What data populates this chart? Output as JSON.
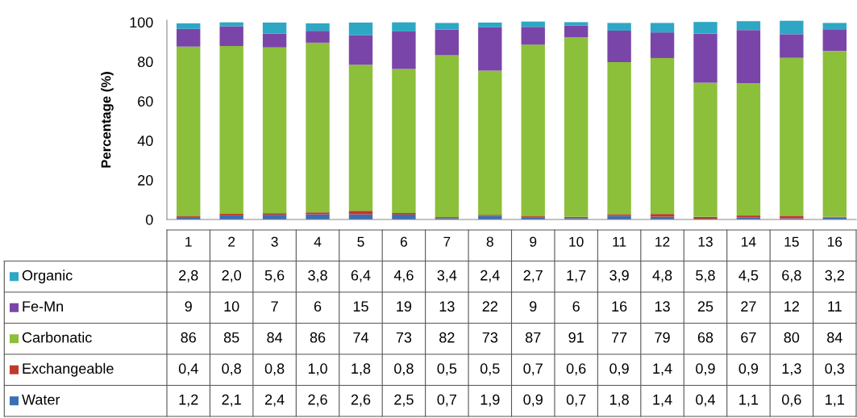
{
  "chart_data": {
    "type": "bar",
    "stacked": true,
    "ylabel": "Percentage (%)",
    "ylim": [
      0,
      101
    ],
    "legend": "bottom",
    "yticks": [
      0,
      20,
      40,
      60,
      80,
      100
    ],
    "grid": false,
    "categories": [
      "1",
      "2",
      "3",
      "4",
      "5",
      "6",
      "7",
      "8",
      "9",
      "10",
      "11",
      "12",
      "13",
      "14",
      "15",
      "16"
    ],
    "series": [
      {
        "name": "Water",
        "color": "#3a6fb5",
        "values": [
          1.2,
          2.1,
          2.4,
          2.6,
          2.6,
          2.5,
          0.7,
          1.9,
          0.9,
          0.7,
          1.8,
          1.4,
          0.4,
          1.1,
          0.6,
          1.1
        ],
        "value_labels": [
          "1,2",
          "2,1",
          "2,4",
          "2,6",
          "2,6",
          "2,5",
          "0,7",
          "1,9",
          "0,9",
          "0,7",
          "1,8",
          "1,4",
          "0,4",
          "1,1",
          "0,6",
          "1,1"
        ]
      },
      {
        "name": "Exchangeable",
        "color": "#c0392b",
        "values": [
          0.4,
          0.8,
          0.8,
          1.0,
          1.8,
          0.8,
          0.5,
          0.5,
          0.7,
          0.6,
          0.9,
          1.4,
          0.9,
          0.9,
          1.3,
          0.3
        ],
        "value_labels": [
          "0,4",
          "0,8",
          "0,8",
          "1,0",
          "1,8",
          "0,8",
          "0,5",
          "0,5",
          "0,7",
          "0,6",
          "0,9",
          "1,4",
          "0,9",
          "0,9",
          "1,3",
          "0,3"
        ]
      },
      {
        "name": "Carbonatic",
        "color": "#8cbf3a",
        "values": [
          86,
          85,
          84,
          86,
          74,
          73,
          82,
          73,
          87,
          91,
          77,
          79,
          68,
          67,
          80,
          84
        ],
        "value_labels": [
          "86",
          "85",
          "84",
          "86",
          "74",
          "73",
          "82",
          "73",
          "87",
          "91",
          "77",
          "79",
          "68",
          "67",
          "80",
          "84"
        ]
      },
      {
        "name": "Fe-Mn",
        "color": "#7a45a8",
        "values": [
          9,
          10,
          7,
          6,
          15,
          19,
          13,
          22,
          9,
          6,
          16,
          13,
          25,
          27,
          12,
          11
        ],
        "value_labels": [
          "9",
          "10",
          "7",
          "6",
          "15",
          "19",
          "13",
          "22",
          "9",
          "6",
          "16",
          "13",
          "25",
          "27",
          "12",
          "11"
        ]
      },
      {
        "name": "Organic",
        "color": "#2ea7c4",
        "values": [
          2.8,
          2.0,
          5.6,
          3.8,
          6.4,
          4.6,
          3.4,
          2.4,
          2.7,
          1.7,
          3.9,
          4.8,
          5.8,
          4.5,
          6.8,
          3.2
        ],
        "value_labels": [
          "2,8",
          "2,0",
          "5,6",
          "3,8",
          "6,4",
          "4,6",
          "3,4",
          "2,4",
          "2,7",
          "1,7",
          "3,9",
          "4,8",
          "5,8",
          "4,5",
          "6,8",
          "3,2"
        ]
      }
    ]
  }
}
